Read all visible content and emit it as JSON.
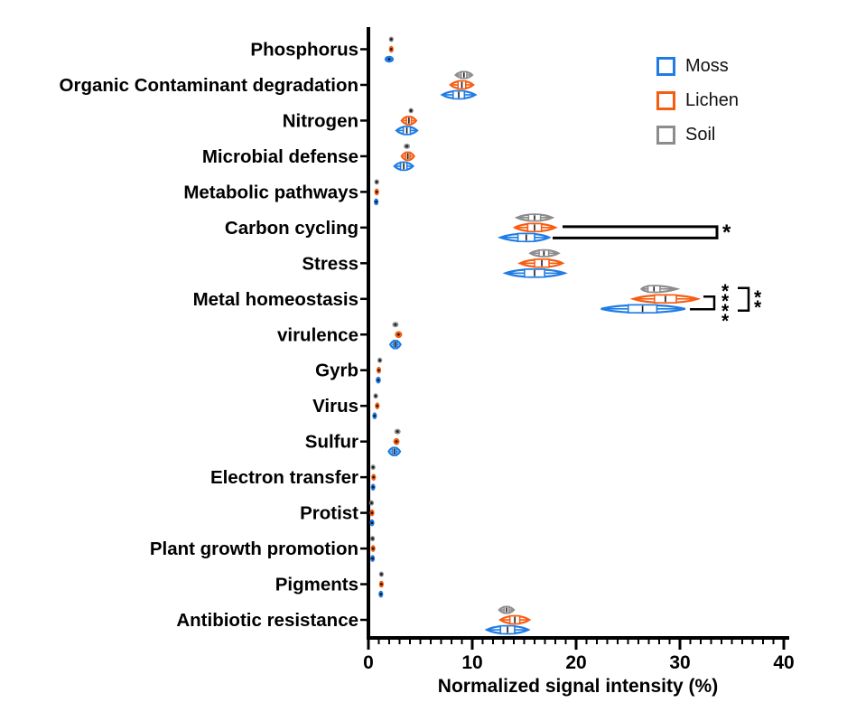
{
  "legend": {
    "items": [
      {
        "label": "Moss",
        "color": "#1f7ce4"
      },
      {
        "label": "Lichen",
        "color": "#f75c10"
      },
      {
        "label": "Soil",
        "color": "#8c8c8c"
      }
    ]
  },
  "chart_data": {
    "type": "violin",
    "orientation": "horizontal",
    "title": "",
    "xlabel": "Normalized signal intensity (%)",
    "ylabel": "",
    "xlim": [
      0,
      40
    ],
    "x_ticks": [
      0,
      10,
      20,
      30,
      40
    ],
    "x_tick_labels": [
      "0",
      "10",
      "20",
      "30",
      "40"
    ],
    "x_minor_tick_step": 1,
    "grid": false,
    "legend_position": "top-right",
    "series_order_top_to_bottom": [
      "Soil",
      "Lichen",
      "Moss"
    ],
    "colors": {
      "Moss": "#1f7ce4",
      "Lichen": "#f75c10",
      "Soil": "#8c8c8c"
    },
    "value_format": "min_center_max_percent",
    "rows": [
      {
        "category": "Phosphorus",
        "Soil": [
          2.1,
          2.2,
          2.3
        ],
        "Lichen": [
          2.0,
          2.2,
          2.4
        ],
        "Moss": [
          1.55,
          2.0,
          2.45
        ]
      },
      {
        "category": "Organic Contaminant degradation",
        "Soil": [
          8.4,
          9.2,
          10.0
        ],
        "Lichen": [
          7.9,
          9.0,
          10.1
        ],
        "Moss": [
          7.1,
          8.7,
          10.3
        ]
      },
      {
        "category": "Nitrogen",
        "Soil": [
          3.9,
          4.1,
          4.3
        ],
        "Lichen": [
          3.2,
          3.9,
          4.6
        ],
        "Moss": [
          2.7,
          3.7,
          4.7
        ]
      },
      {
        "category": "Microbial defense",
        "Soil": [
          3.4,
          3.7,
          4.0
        ],
        "Lichen": [
          3.2,
          3.8,
          4.4
        ],
        "Moss": [
          2.5,
          3.4,
          4.3
        ]
      },
      {
        "category": "Metabolic pathways",
        "Soil": [
          0.7,
          0.8,
          0.9
        ],
        "Lichen": [
          0.65,
          0.8,
          0.95
        ],
        "Moss": [
          0.55,
          0.75,
          0.95
        ]
      },
      {
        "category": "Carbon cycling",
        "Soil": [
          14.3,
          16.0,
          17.7
        ],
        "Lichen": [
          14.1,
          16.0,
          18.0
        ],
        "Moss": [
          12.7,
          15.2,
          17.4
        ]
      },
      {
        "category": "Stress",
        "Soil": [
          15.6,
          16.9,
          18.3
        ],
        "Lichen": [
          14.6,
          16.7,
          18.7
        ],
        "Moss": [
          13.2,
          16.0,
          18.9
        ]
      },
      {
        "category": "Metal homeostasis",
        "Soil": [
          26.3,
          27.5,
          29.7
        ],
        "Lichen": [
          25.5,
          28.6,
          31.7
        ],
        "Moss": [
          22.4,
          26.4,
          30.5
        ]
      },
      {
        "category": "virulence",
        "Soil": [
          2.3,
          2.6,
          2.9
        ],
        "Lichen": [
          2.55,
          2.9,
          3.25
        ],
        "Moss": [
          2.1,
          2.6,
          3.1
        ]
      },
      {
        "category": "Gyrb",
        "Soil": [
          1.0,
          1.1,
          1.2
        ],
        "Lichen": [
          0.85,
          1.0,
          1.15
        ],
        "Moss": [
          0.7,
          0.95,
          1.2
        ]
      },
      {
        "category": "Virus",
        "Soil": [
          0.6,
          0.7,
          0.8
        ],
        "Lichen": [
          0.7,
          0.85,
          1.0
        ],
        "Moss": [
          0.4,
          0.6,
          0.8
        ]
      },
      {
        "category": "Sulfur",
        "Soil": [
          2.5,
          2.8,
          3.1
        ],
        "Lichen": [
          2.4,
          2.7,
          3.0
        ],
        "Moss": [
          1.95,
          2.5,
          3.05
        ]
      },
      {
        "category": "Electron transfer",
        "Soil": [
          0.37,
          0.45,
          0.53
        ],
        "Lichen": [
          0.4,
          0.5,
          0.6
        ],
        "Moss": [
          0.3,
          0.45,
          0.6
        ]
      },
      {
        "category": "Protist",
        "Soil": [
          0.25,
          0.3,
          0.35
        ],
        "Lichen": [
          0.25,
          0.35,
          0.45
        ],
        "Moss": [
          0.23,
          0.35,
          0.47
        ]
      },
      {
        "category": "Plant growth promotion",
        "Soil": [
          0.32,
          0.4,
          0.48
        ],
        "Lichen": [
          0.35,
          0.45,
          0.55
        ],
        "Moss": [
          0.28,
          0.4,
          0.52
        ]
      },
      {
        "category": "Pigments",
        "Soil": [
          1.15,
          1.25,
          1.35
        ],
        "Lichen": [
          1.1,
          1.25,
          1.4
        ],
        "Moss": [
          1.0,
          1.2,
          1.4
        ]
      },
      {
        "category": "Antibiotic resistance",
        "Soil": [
          12.6,
          13.3,
          14.0
        ],
        "Lichen": [
          12.7,
          14.1,
          15.5
        ],
        "Moss": [
          11.4,
          13.4,
          15.4
        ]
      }
    ],
    "annotations": [
      {
        "row": "Carbon cycling",
        "type": "open-rect-bracket",
        "compares": [
          "Lichen",
          "Moss"
        ],
        "label": "*"
      },
      {
        "row": "Metal homeostasis",
        "type": "step-bracket",
        "compares": [
          "Lichen",
          "Moss"
        ],
        "label": "****"
      },
      {
        "row": "Metal homeostasis",
        "type": "square-bracket",
        "compares": [
          "Soil",
          "Moss"
        ],
        "label": "**"
      }
    ]
  }
}
